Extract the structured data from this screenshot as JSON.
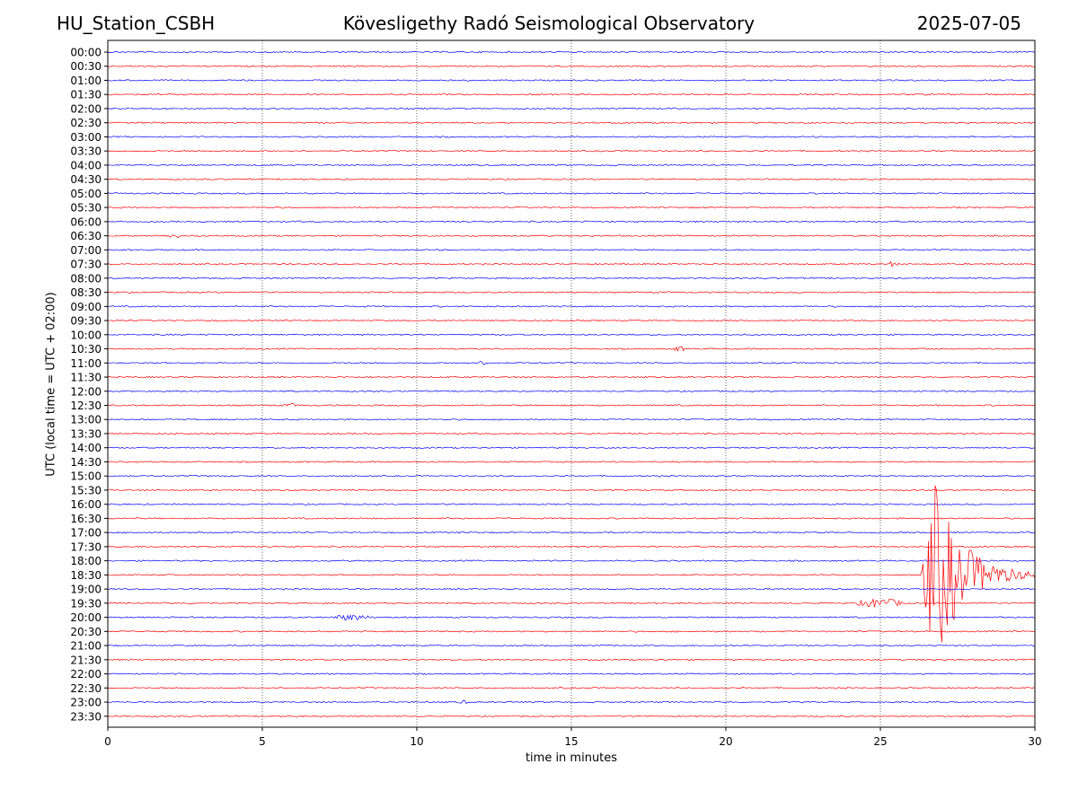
{
  "header": {
    "station": "HU_Station_CSBH",
    "title": "Kövesligethy Radó Seismological Observatory",
    "date": "2025-07-05"
  },
  "chart_data": {
    "type": "line",
    "title": "Kövesligethy Radó Seismological Observatory",
    "xlabel": "time in minutes",
    "ylabel": "UTC (local time = UTC + 02:00)",
    "xlim": [
      0,
      30
    ],
    "xticks": [
      0,
      5,
      10,
      15,
      20,
      25,
      30
    ],
    "grid": "vertical dotted at x ticks",
    "trace_colors": [
      "#0000ff",
      "#ff0000"
    ],
    "rows": [
      "00:00",
      "00:30",
      "01:00",
      "01:30",
      "02:00",
      "02:30",
      "03:00",
      "03:30",
      "04:00",
      "04:30",
      "05:00",
      "05:30",
      "06:00",
      "06:30",
      "07:00",
      "07:30",
      "08:00",
      "08:30",
      "09:00",
      "09:30",
      "10:00",
      "10:30",
      "11:00",
      "11:30",
      "12:00",
      "12:30",
      "13:00",
      "13:30",
      "14:00",
      "14:30",
      "15:00",
      "15:30",
      "16:00",
      "16:30",
      "17:00",
      "17:30",
      "18:00",
      "18:30",
      "19:00",
      "19:30",
      "20:00",
      "20:30",
      "21:00",
      "21:30",
      "22:00",
      "22:30",
      "23:00",
      "23:30"
    ],
    "events": [
      {
        "row": "06:30",
        "start_min": 1.8,
        "end_min": 2.6,
        "amplitude": 0.12
      },
      {
        "row": "07:30",
        "start_min": 25.2,
        "end_min": 25.7,
        "amplitude": 0.15
      },
      {
        "row": "10:30",
        "start_min": 18.3,
        "end_min": 18.8,
        "amplitude": 0.15
      },
      {
        "row": "11:00",
        "start_min": 12.0,
        "end_min": 12.4,
        "amplitude": 0.15
      },
      {
        "row": "12:30",
        "start_min": 5.7,
        "end_min": 6.3,
        "amplitude": 0.1
      },
      {
        "row": "19:30",
        "start_min": 24.2,
        "end_min": 26.3,
        "amplitude": 0.3
      },
      {
        "row": "18:30",
        "start_min": 26.3,
        "end_min": 30.0,
        "amplitude": 6.5
      },
      {
        "row": "20:00",
        "start_min": 7.2,
        "end_min": 9.0,
        "amplitude": 0.18
      },
      {
        "row": "23:00",
        "start_min": 11.3,
        "end_min": 11.8,
        "amplitude": 0.1
      }
    ]
  }
}
